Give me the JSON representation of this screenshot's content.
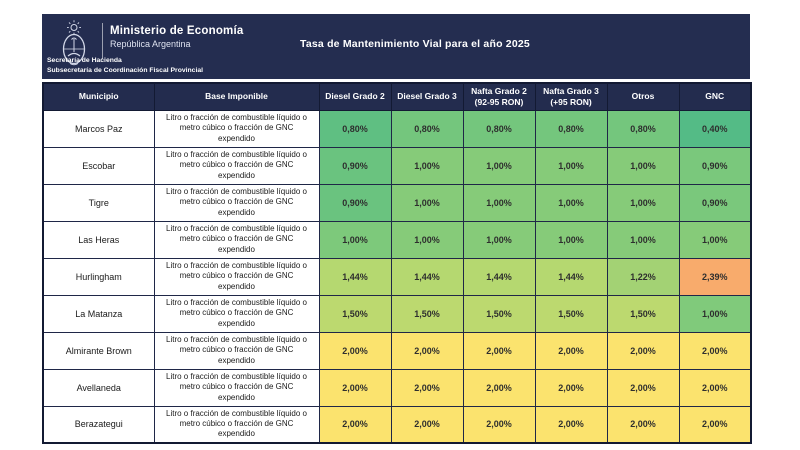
{
  "header": {
    "ministry_name": "Ministerio de Economía",
    "country": "República Argentina",
    "secretariat": "Secretaría de Hacienda",
    "subsecretariat": "Subsecretaría de Coordinación Fiscal Provincial",
    "title": "Tasa de Mantenimiento Vial para el año 2025",
    "banner_color": "#242d50"
  },
  "table": {
    "columns": [
      "Municipio",
      "Base Imponible",
      "Diesel Grado 2",
      "Diesel Grado 3",
      "Nafta Grado 2 (92-95 RON)",
      "Nafta Grado 3 (+95 RON)",
      "Otros",
      "GNC"
    ],
    "base_imponible_text": "Litro o fracción de combustible líquido o metro cúbico o fracción de GNC expendido",
    "rows": [
      {
        "municipio": "Marcos Paz",
        "values": [
          "0,80%",
          "0,80%",
          "0,80%",
          "0,80%",
          "0,80%",
          "0,40%"
        ],
        "colors": [
          "#5fbf82",
          "#74c67d",
          "#74c67d",
          "#74c67d",
          "#74c67d",
          "#54bb86"
        ]
      },
      {
        "municipio": "Escobar",
        "values": [
          "0,90%",
          "1,00%",
          "1,00%",
          "1,00%",
          "1,00%",
          "0,90%"
        ],
        "colors": [
          "#6ac37f",
          "#86cb79",
          "#86cb79",
          "#86cb79",
          "#86cb79",
          "#7ac87c"
        ]
      },
      {
        "municipio": "Tigre",
        "values": [
          "0,90%",
          "1,00%",
          "1,00%",
          "1,00%",
          "1,00%",
          "0,90%"
        ],
        "colors": [
          "#6ac37f",
          "#86cb79",
          "#86cb79",
          "#86cb79",
          "#86cb79",
          "#7ac87c"
        ]
      },
      {
        "municipio": "Las Heras",
        "values": [
          "1,00%",
          "1,00%",
          "1,00%",
          "1,00%",
          "1,00%",
          "1,00%"
        ],
        "colors": [
          "#7dc97b",
          "#86cb79",
          "#86cb79",
          "#86cb79",
          "#86cb79",
          "#86cb79"
        ]
      },
      {
        "municipio": "Hurlingham",
        "values": [
          "1,44%",
          "1,44%",
          "1,44%",
          "1,44%",
          "1,22%",
          "2,39%"
        ],
        "colors": [
          "#b5d870",
          "#b5d870",
          "#b5d870",
          "#b5d870",
          "#a3d274",
          "#f8ab6c"
        ]
      },
      {
        "municipio": "La Matanza",
        "values": [
          "1,50%",
          "1,50%",
          "1,50%",
          "1,50%",
          "1,50%",
          "1,00%"
        ],
        "colors": [
          "#bcd96f",
          "#bcd96f",
          "#bcd96f",
          "#bcd96f",
          "#bcd96f",
          "#80ca7b"
        ]
      },
      {
        "municipio": "Almirante Brown",
        "values": [
          "2,00%",
          "2,00%",
          "2,00%",
          "2,00%",
          "2,00%",
          "2,00%"
        ],
        "colors": [
          "#fbe36e",
          "#fbe36e",
          "#fbe36e",
          "#fbe36e",
          "#fbe36e",
          "#fbe36e"
        ]
      },
      {
        "municipio": "Avellaneda",
        "values": [
          "2,00%",
          "2,00%",
          "2,00%",
          "2,00%",
          "2,00%",
          "2,00%"
        ],
        "colors": [
          "#fbe36e",
          "#fbe36e",
          "#fbe36e",
          "#fbe36e",
          "#fbe36e",
          "#fbe36e"
        ]
      },
      {
        "municipio": "Berazategui",
        "values": [
          "2,00%",
          "2,00%",
          "2,00%",
          "2,00%",
          "2,00%",
          "2,00%"
        ],
        "colors": [
          "#fbe36e",
          "#fbe36e",
          "#fbe36e",
          "#fbe36e",
          "#fbe36e",
          "#fbe36e"
        ]
      }
    ]
  }
}
